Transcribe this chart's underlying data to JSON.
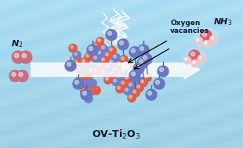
{
  "ti_color": "#d9604a",
  "o_color": "#7080c8",
  "n2_color": "#c87080",
  "nh3_n_color": "#d86070",
  "nh3_h_color": "#e8c8cc",
  "ball_color": "#6878c0",
  "bg_top": "#a8dff0",
  "bg_bot": "#60c0e0",
  "wave_color": "#78c8e8",
  "arrow_color": "#dce8f0",
  "text_color": "#101828",
  "label_n2": "N$_2$",
  "label_nh3": "NH$_3$",
  "label_ov": "Oxygen\nvacancies",
  "label_crystal": "OV-Ti$_2$O$_3$",
  "figsize": [
    3.1,
    1.89
  ],
  "dpi": 100
}
